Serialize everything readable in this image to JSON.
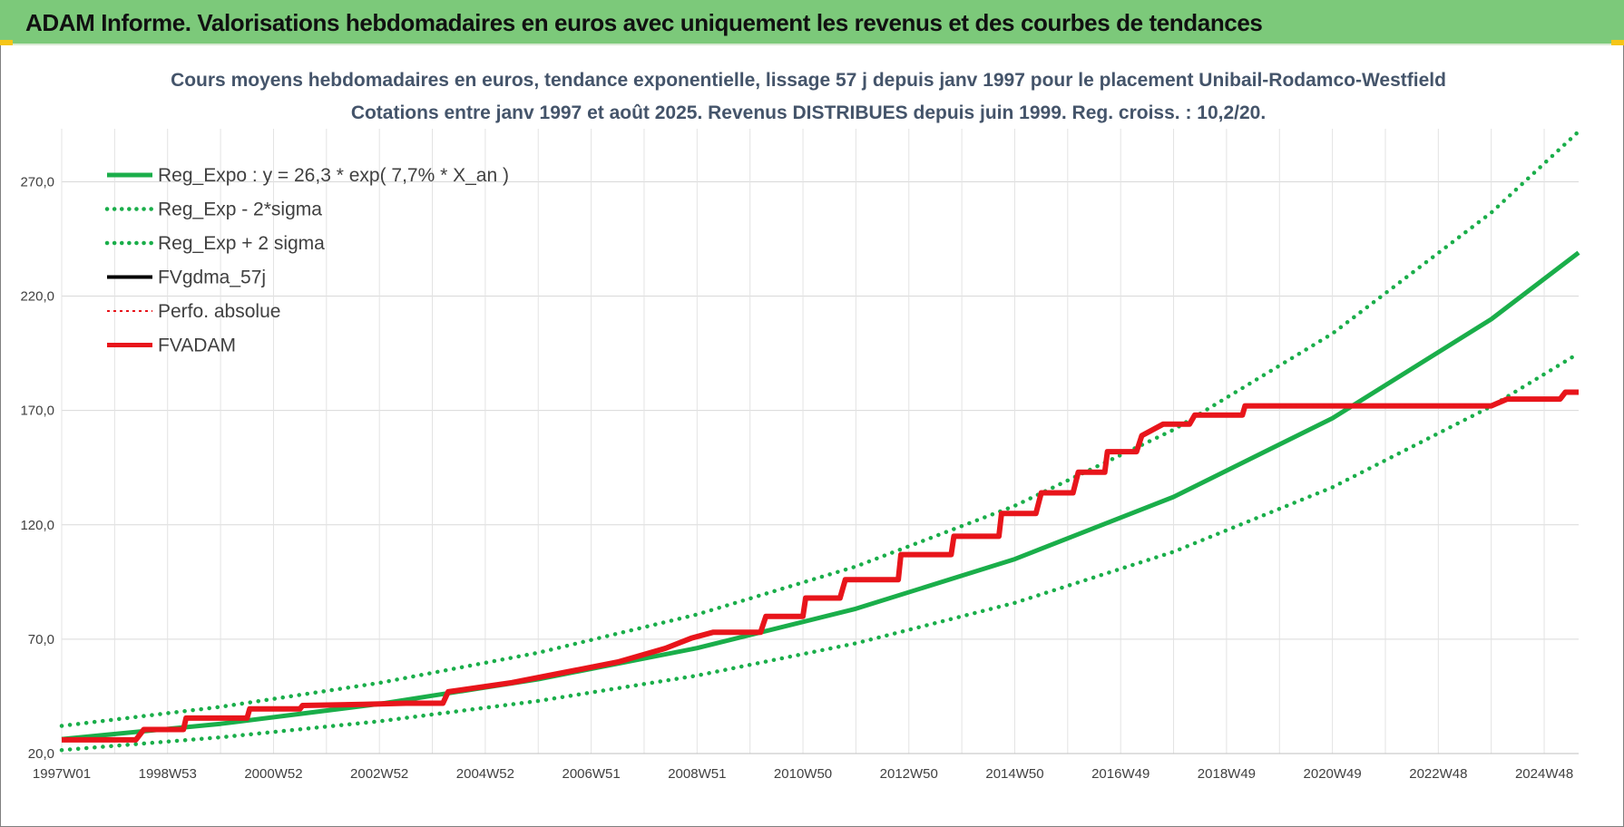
{
  "header": {
    "title": "ADAM Informe. Valorisations hebdomadaires en euros avec uniquement les revenus et des courbes de tendances"
  },
  "colors": {
    "banner": "#7cc97a",
    "trend": "#1aae4a",
    "fvgdma": "#000000",
    "fvadam": "#e8151b",
    "perfo": "#e8151b"
  },
  "chart_data": {
    "type": "line",
    "title": "Cours moyens hebdomadaires en euros, tendance exponentielle, lissage 57 j depuis janv 1997 pour le placement Unibail-Rodamco-Westfield",
    "subtitle": "Cotations entre janv 1997 et août 2025. Revenus DISTRIBUES depuis juin 1999. Reg. croiss. : 10,2/20.",
    "xlabel": "",
    "ylabel": "",
    "x_range": [
      1997.0,
      2025.65
    ],
    "ylim": [
      20,
      290
    ],
    "y_ticks": [
      {
        "value": 20,
        "label": "20,0"
      },
      {
        "value": 70,
        "label": "70,0"
      },
      {
        "value": 120,
        "label": "120,0"
      },
      {
        "value": 170,
        "label": "170,0"
      },
      {
        "value": 220,
        "label": "220,0"
      },
      {
        "value": 270,
        "label": "270,0"
      }
    ],
    "x_ticks": [
      {
        "year": 1997.0,
        "label": "1997W01"
      },
      {
        "year": 1999.0,
        "label": "1998W53"
      },
      {
        "year": 2001.0,
        "label": "2000W52"
      },
      {
        "year": 2003.0,
        "label": "2002W52"
      },
      {
        "year": 2005.0,
        "label": "2004W52"
      },
      {
        "year": 2007.0,
        "label": "2006W51"
      },
      {
        "year": 2009.0,
        "label": "2008W51"
      },
      {
        "year": 2011.0,
        "label": "2010W50"
      },
      {
        "year": 2013.0,
        "label": "2012W50"
      },
      {
        "year": 2015.0,
        "label": "2014W50"
      },
      {
        "year": 2017.0,
        "label": "2016W49"
      },
      {
        "year": 2019.0,
        "label": "2018W49"
      },
      {
        "year": 2021.0,
        "label": "2020W49"
      },
      {
        "year": 2023.0,
        "label": "2022W48"
      },
      {
        "year": 2025.0,
        "label": "2024W48"
      }
    ],
    "grid": true,
    "legend_position": "top-left",
    "series": [
      {
        "name": "Reg_Expo : y = 26,3 * exp( 7,7% *  X_an )",
        "style": "solid",
        "color": "#1aae4a",
        "x": [
          1997,
          2000,
          2003,
          2006,
          2009,
          2012,
          2015,
          2018,
          2021,
          2024,
          2025.65
        ],
        "y": [
          26.3,
          33.0,
          41.7,
          52.5,
          66.1,
          83.3,
          105.0,
          132.2,
          166.6,
          209.9,
          239.0
        ]
      },
      {
        "name": "Reg_Exp - 2*sigma",
        "style": "dotted",
        "color": "#1aae4a",
        "x": [
          1997,
          2000,
          2003,
          2006,
          2009,
          2012,
          2015,
          2018,
          2021,
          2024,
          2025.65
        ],
        "y": [
          21.5,
          27.1,
          34.1,
          43.0,
          54.1,
          68.2,
          85.9,
          108.2,
          136.4,
          171.8,
          195.0
        ]
      },
      {
        "name": "Reg_Exp + 2 sigma",
        "style": "dotted",
        "color": "#1aae4a",
        "x": [
          1997,
          2000,
          2003,
          2006,
          2009,
          2012,
          2015,
          2018,
          2021,
          2024,
          2025.65
        ],
        "y": [
          32.1,
          40.4,
          50.9,
          64.1,
          80.8,
          101.8,
          128.3,
          161.6,
          203.6,
          256.5,
          292.0
        ]
      },
      {
        "name": "FVgdma_57j",
        "style": "solid",
        "color": "#000000",
        "x": [
          1997.0,
          1998.4,
          1998.55,
          1999.3,
          1999.35,
          2000.5,
          2000.55,
          2001.5,
          2001.55,
          2002.7,
          2003.5,
          2004.2,
          2004.3,
          2005.5,
          2006.5,
          2007.5,
          2008.4,
          2008.9,
          2009.3,
          2009.6,
          2010.2,
          2010.3,
          2011.0,
          2011.05,
          2011.7,
          2011.8,
          2012.8,
          2012.85,
          2013.8,
          2013.85,
          2014.7,
          2014.75,
          2015.4,
          2015.5,
          2016.1,
          2016.2,
          2016.7,
          2016.75,
          2017.3,
          2017.4,
          2017.8,
          2018.3,
          2018.4,
          2018.8,
          2019.3,
          2019.35,
          2019.8,
          2024.0,
          2024.3,
          2025.3,
          2025.4,
          2025.65
        ],
        "y": [
          26.0,
          26.0,
          30.5,
          30.5,
          35.5,
          35.5,
          39.5,
          39.5,
          41.0,
          41.5,
          42.0,
          42.0,
          47.0,
          51.0,
          55.5,
          60.0,
          66.0,
          70.5,
          73.0,
          73.0,
          73.0,
          80.0,
          80.0,
          88.0,
          88.0,
          96.0,
          96.0,
          107.0,
          107.0,
          115.0,
          115.0,
          125.0,
          125.0,
          134.0,
          134.0,
          143.0,
          143.0,
          152.0,
          152.0,
          159.0,
          164.0,
          164.0,
          168.0,
          168.0,
          168.0,
          172.0,
          172.0,
          172.0,
          175.0,
          175.0,
          178.0,
          178.0
        ]
      },
      {
        "name": "Perfo. absolue",
        "style": "dotted",
        "color": "#e8151b",
        "x": [
          1997.0,
          1998.4,
          1998.55,
          1999.3,
          1999.35,
          2000.5,
          2000.55,
          2001.5,
          2001.55,
          2002.7,
          2003.5,
          2004.2,
          2004.3,
          2005.5,
          2006.5,
          2007.5,
          2008.4,
          2008.9,
          2009.3,
          2009.6,
          2010.2,
          2010.3,
          2011.0,
          2011.05,
          2011.7,
          2011.8,
          2012.8,
          2012.85,
          2013.8,
          2013.85,
          2014.7,
          2014.75,
          2015.4,
          2015.5,
          2016.1,
          2016.2,
          2016.7,
          2016.75,
          2017.3,
          2017.4,
          2017.8,
          2018.3,
          2018.4,
          2018.8,
          2019.3,
          2019.35,
          2019.8,
          2024.0,
          2024.3,
          2025.3,
          2025.4,
          2025.65
        ],
        "y": [
          26.0,
          26.0,
          30.5,
          30.5,
          35.5,
          35.5,
          39.5,
          39.5,
          41.0,
          41.5,
          42.0,
          42.0,
          47.0,
          51.0,
          55.5,
          60.0,
          66.0,
          70.5,
          73.0,
          73.0,
          73.0,
          80.0,
          80.0,
          88.0,
          88.0,
          96.0,
          96.0,
          107.0,
          107.0,
          115.0,
          115.0,
          125.0,
          125.0,
          134.0,
          134.0,
          143.0,
          143.0,
          152.0,
          152.0,
          159.0,
          164.0,
          164.0,
          168.0,
          168.0,
          168.0,
          172.0,
          172.0,
          172.0,
          175.0,
          175.0,
          178.0,
          178.0
        ]
      },
      {
        "name": "FVADAM",
        "style": "solid",
        "color": "#e8151b",
        "x": [
          1997.0,
          1998.4,
          1998.55,
          1999.3,
          1999.35,
          2000.5,
          2000.55,
          2001.5,
          2001.55,
          2002.7,
          2003.5,
          2004.2,
          2004.3,
          2005.5,
          2006.5,
          2007.5,
          2008.4,
          2008.9,
          2009.3,
          2009.6,
          2010.2,
          2010.3,
          2011.0,
          2011.05,
          2011.7,
          2011.8,
          2012.8,
          2012.85,
          2013.8,
          2013.85,
          2014.7,
          2014.75,
          2015.4,
          2015.5,
          2016.1,
          2016.2,
          2016.7,
          2016.75,
          2017.3,
          2017.4,
          2017.8,
          2018.3,
          2018.4,
          2018.8,
          2019.3,
          2019.35,
          2019.8,
          2024.0,
          2024.3,
          2025.3,
          2025.4,
          2025.65
        ],
        "y": [
          26.0,
          26.0,
          30.5,
          30.5,
          35.5,
          35.5,
          39.5,
          39.5,
          41.0,
          41.5,
          42.0,
          42.0,
          47.0,
          51.0,
          55.5,
          60.0,
          66.0,
          70.5,
          73.0,
          73.0,
          73.0,
          80.0,
          80.0,
          88.0,
          88.0,
          96.0,
          96.0,
          107.0,
          107.0,
          115.0,
          115.0,
          125.0,
          125.0,
          134.0,
          134.0,
          143.0,
          143.0,
          152.0,
          152.0,
          159.0,
          164.0,
          164.0,
          168.0,
          168.0,
          168.0,
          172.0,
          172.0,
          172.0,
          175.0,
          175.0,
          178.0,
          178.0
        ]
      }
    ]
  }
}
